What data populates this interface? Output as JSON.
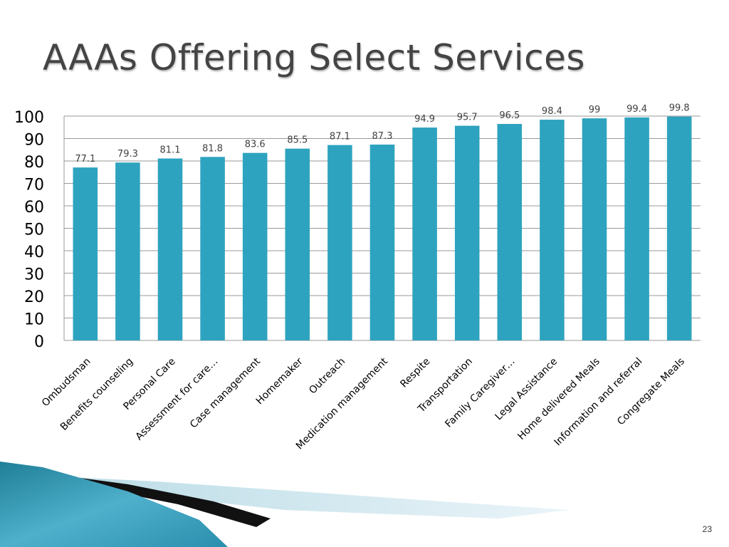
{
  "slide": {
    "title": "AAAs Offering Select Services",
    "page_number": "23"
  },
  "colors": {
    "bar": "#2ea3bf",
    "grid": "#9a9a9a",
    "axis_text": "#000000",
    "label_text": "#404040"
  },
  "chart_data": {
    "type": "bar",
    "categories": [
      "Ombudsman",
      "Benefits counseling",
      "Personal Care",
      "Assessment for care…",
      "Case management",
      "Homemaker",
      "Outreach",
      "Medication management",
      "Respite",
      "Transportation",
      "Family Caregiver…",
      "Legal Assistance",
      "Home delivered Meals",
      "Information and referral",
      "Congregate Meals"
    ],
    "values": [
      77.1,
      79.3,
      81.1,
      81.8,
      83.6,
      85.5,
      87.1,
      87.3,
      94.9,
      95.7,
      96.5,
      98.4,
      99,
      99.4,
      99.8
    ],
    "value_labels": [
      "77.1",
      "79.3",
      "81.1",
      "81.8",
      "83.6",
      "85.5",
      "87.1",
      "87.3",
      "94.9",
      "95.7",
      "96.5",
      "98.4",
      "99",
      "99.4",
      "99.8"
    ],
    "yticks": [
      "0",
      "10",
      "20",
      "30",
      "40",
      "50",
      "60",
      "70",
      "80",
      "90",
      "100"
    ],
    "ylim": [
      0,
      100
    ],
    "grid": true,
    "legend": "none"
  }
}
